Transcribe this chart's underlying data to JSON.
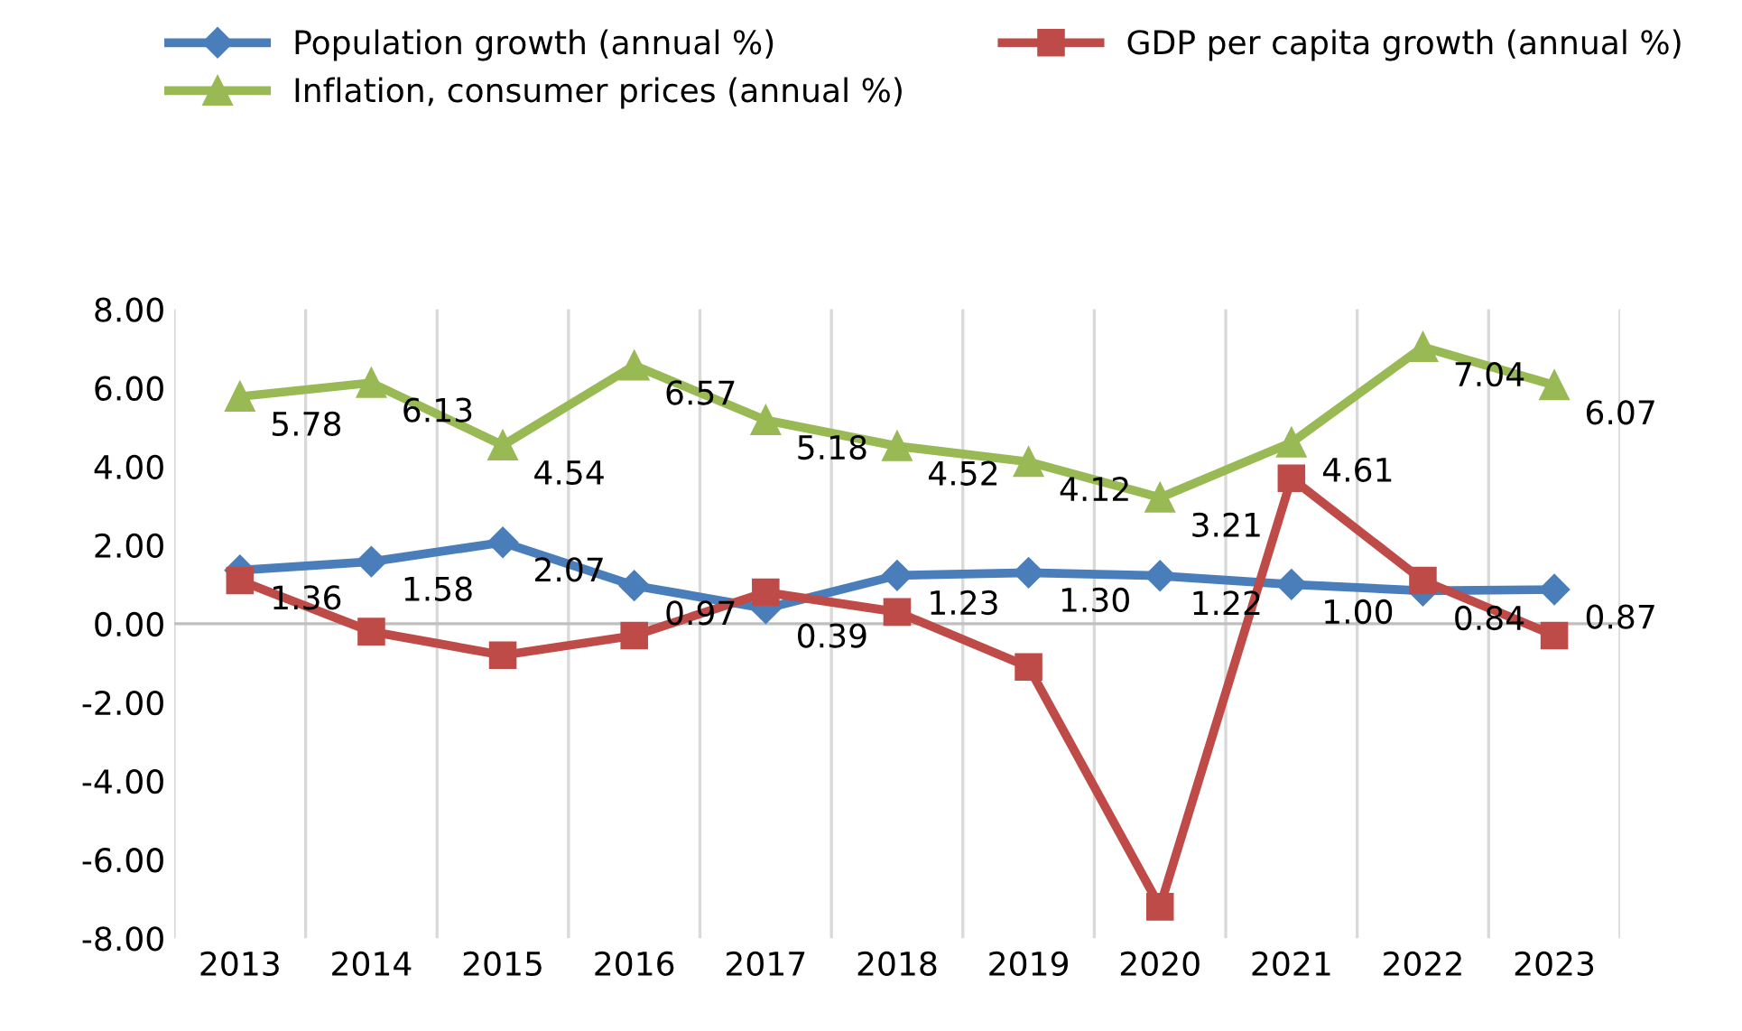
{
  "chart_data": {
    "type": "line",
    "categories": [
      "2013",
      "2014",
      "2015",
      "2016",
      "2017",
      "2018",
      "2019",
      "2020",
      "2021",
      "2022",
      "2023"
    ],
    "series": [
      {
        "name": "Population growth (annual %)",
        "color": "#4a7ebb",
        "marker": "diamond",
        "values": [
          1.36,
          1.58,
          2.07,
          0.97,
          0.39,
          1.23,
          1.3,
          1.22,
          1.0,
          0.84,
          0.87
        ],
        "value_labels": [
          "1.36",
          "1.58",
          "2.07",
          "0.97",
          "0.39",
          "1.23",
          "1.30",
          "1.22",
          "1.00",
          "0.84",
          "0.87"
        ]
      },
      {
        "name": "GDP per capita growth (annual %)",
        "color": "#be4b48",
        "marker": "square",
        "values": [
          1.1,
          -0.2,
          -0.8,
          -0.3,
          0.8,
          0.3,
          -1.1,
          -7.2,
          3.7,
          1.1,
          -0.3
        ]
      },
      {
        "name": "Inflation, consumer prices (annual %)",
        "color": "#98b954",
        "marker": "triangle",
        "values": [
          5.78,
          6.13,
          4.54,
          6.57,
          5.18,
          4.52,
          4.12,
          3.21,
          4.61,
          7.04,
          6.07
        ],
        "value_labels": [
          "5.78",
          "6.13",
          "4.54",
          "6.57",
          "5.18",
          "4.52",
          "4.12",
          "3.21",
          "4.61",
          "7.04",
          "6.07"
        ]
      }
    ],
    "ylim": [
      -8,
      8
    ],
    "yticks": [
      {
        "value": -8,
        "label": "-8.00"
      },
      {
        "value": -6,
        "label": "-6.00"
      },
      {
        "value": -4,
        "label": "-4.00"
      },
      {
        "value": -2,
        "label": "-2.00"
      },
      {
        "value": 0,
        "label": "0.00"
      },
      {
        "value": 2,
        "label": "2.00"
      },
      {
        "value": 4,
        "label": "4.00"
      },
      {
        "value": 6,
        "label": "6.00"
      },
      {
        "value": 8,
        "label": "8.00"
      }
    ],
    "grid": "x",
    "legend": "top left"
  }
}
